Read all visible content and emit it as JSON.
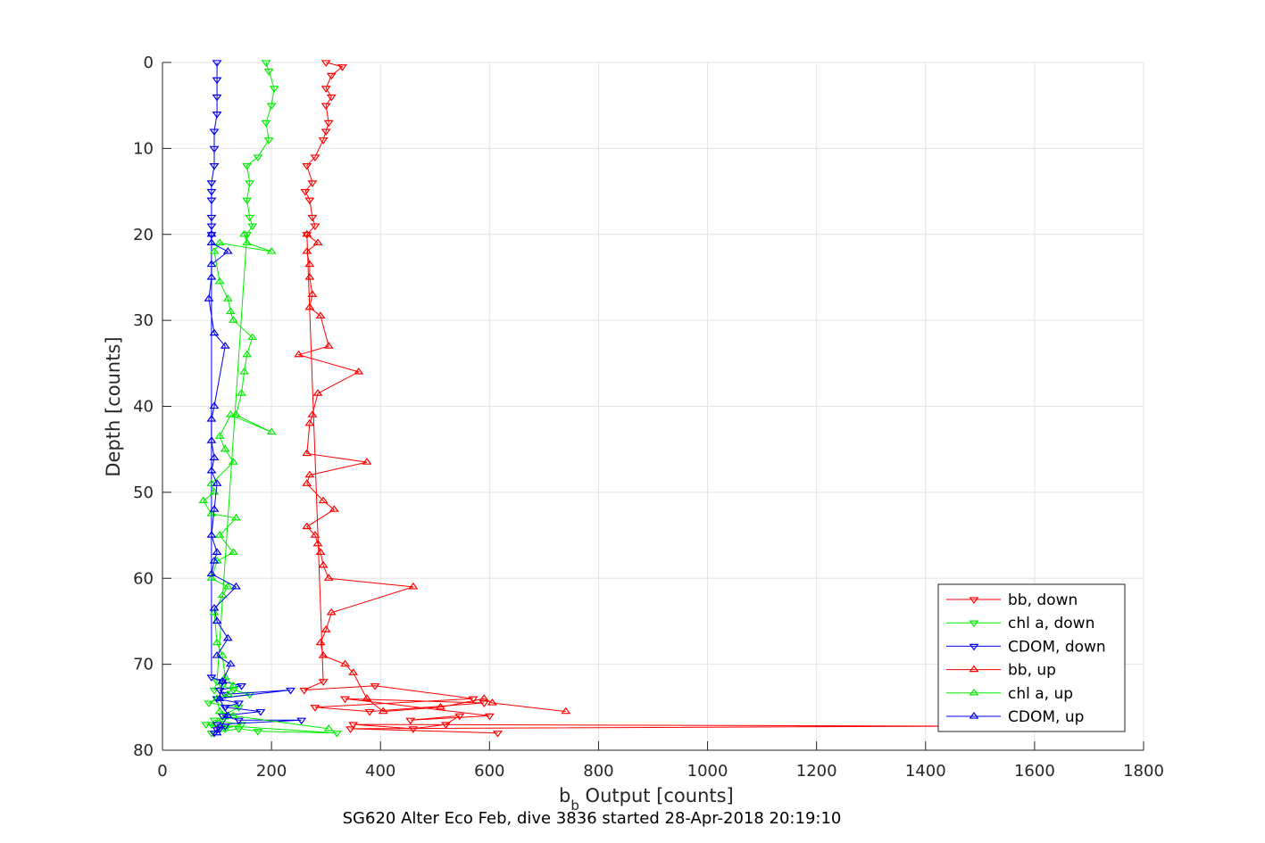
{
  "chart_data": {
    "type": "line",
    "title": "",
    "caption": "SG620 Alter Eco Feb, dive 3836 started 28-Apr-2018 20:19:10",
    "xlabel_main": "b",
    "xlabel_sub": "b",
    "xlabel_rest": " Output [counts]",
    "ylabel": "Depth [counts]",
    "xlim": [
      0,
      1800
    ],
    "ylim": [
      0,
      80
    ],
    "y_reversed": true,
    "grid": true,
    "legend_position": "bottom-right",
    "xticks": [
      "0",
      "200",
      "400",
      "600",
      "800",
      "1000",
      "1200",
      "1400",
      "1600",
      "1800"
    ],
    "yticks": [
      "0",
      "10",
      "20",
      "30",
      "40",
      "50",
      "60",
      "70",
      "80"
    ],
    "series": [
      {
        "name": "bb, down",
        "color": "#ff0000",
        "marker": "triangle-down",
        "x": [
          300,
          330,
          310,
          300,
          310,
          300,
          305,
          300,
          295,
          280,
          265,
          275,
          262,
          270,
          275,
          280,
          265,
          295,
          260,
          390,
          570,
          280,
          380,
          590,
          335,
          600,
          455,
          545,
          520,
          460,
          350,
          1470,
          345,
          615
        ],
        "y": [
          0,
          0.5,
          1.5,
          3,
          4,
          5,
          7,
          8,
          9,
          11,
          12,
          14,
          15,
          16,
          18,
          19,
          20,
          72,
          73,
          72.5,
          74,
          75,
          75.5,
          74.5,
          74,
          76,
          76.5,
          76,
          77,
          77.5,
          77,
          77.2,
          77.5,
          78
        ]
      },
      {
        "name": "chl a, down",
        "color": "#00ee00",
        "marker": "triangle-down",
        "x": [
          190,
          195,
          205,
          200,
          190,
          195,
          175,
          155,
          160,
          155,
          160,
          165,
          155,
          100,
          95,
          110,
          130,
          160,
          100,
          85,
          140,
          110,
          110,
          120,
          90,
          95,
          145,
          115,
          80,
          320,
          175,
          140,
          90
        ],
        "y": [
          0,
          1,
          3,
          5,
          7,
          9,
          11,
          12,
          14,
          16,
          18,
          19,
          20,
          72,
          73,
          72.5,
          73,
          73.5,
          74,
          74.5,
          75,
          76,
          76.5,
          76,
          77,
          76.5,
          77,
          77.5,
          77,
          78,
          77.8,
          77.5,
          78
        ]
      },
      {
        "name": "CDOM, down",
        "color": "#0000ee",
        "marker": "triangle-down",
        "x": [
          100,
          100,
          100,
          100,
          95,
          95,
          95,
          90,
          90,
          90,
          90,
          90,
          90,
          90,
          110,
          145,
          105,
          115,
          235,
          100,
          140,
          115,
          180,
          110,
          140,
          255,
          100,
          105,
          115,
          100,
          95
        ],
        "y": [
          0,
          2,
          4,
          6,
          8,
          10,
          12,
          14,
          15,
          16,
          18,
          19,
          20,
          71.5,
          72,
          72.5,
          73,
          73.5,
          73,
          74,
          74.5,
          75,
          75.5,
          76,
          76.5,
          76.5,
          77,
          77.5,
          77.2,
          77.6,
          78
        ]
      },
      {
        "name": "bb, up",
        "color": "#ff0000",
        "marker": "triangle-up",
        "x": [
          740,
          605,
          590,
          510,
          405,
          375,
          350,
          335,
          295,
          290,
          300,
          310,
          460,
          305,
          295,
          290,
          285,
          280,
          265,
          315,
          295,
          265,
          270,
          375,
          265,
          270,
          275,
          285,
          360,
          250,
          305,
          290,
          270,
          275,
          270,
          270,
          265,
          285,
          265
        ],
        "y": [
          75.5,
          74.5,
          74,
          75,
          75.5,
          74,
          71,
          70,
          69,
          67.5,
          66,
          64,
          61,
          60,
          58.5,
          57,
          56,
          55,
          54,
          52,
          51,
          49,
          48,
          46.5,
          45.5,
          42,
          41,
          38.5,
          36,
          34,
          33,
          29.5,
          28.5,
          27,
          25,
          23.5,
          22,
          21,
          20
        ]
      },
      {
        "name": "chl a, up",
        "color": "#00ee00",
        "marker": "triangle-up",
        "x": [
          305,
          130,
          105,
          100,
          120,
          130,
          115,
          110,
          100,
          95,
          110,
          120,
          90,
          100,
          130,
          105,
          135,
          90,
          75,
          95,
          90,
          130,
          115,
          105,
          125,
          200,
          135,
          145,
          150,
          155,
          165,
          130,
          125,
          120,
          105,
          95,
          105,
          200,
          155,
          150
        ],
        "y": [
          77.5,
          76,
          75.5,
          74,
          73.5,
          72.5,
          71.5,
          69,
          67.5,
          64,
          62,
          61,
          60,
          58,
          57,
          55,
          53,
          52.5,
          51,
          50,
          49,
          46.5,
          45,
          43.5,
          41,
          43,
          41,
          38.5,
          36,
          34,
          32,
          30,
          29,
          27.5,
          25.5,
          22,
          21,
          22,
          21,
          20
        ]
      },
      {
        "name": "CDOM, up",
        "color": "#0000ee",
        "marker": "triangle-up",
        "x": [
          100,
          120,
          105,
          110,
          125,
          100,
          120,
          100,
          95,
          135,
          90,
          95,
          100,
          90,
          95,
          100,
          90,
          95,
          90,
          90,
          95,
          115,
          95,
          85,
          90,
          90,
          120,
          90,
          90
        ],
        "y": [
          78,
          76,
          74,
          72,
          70,
          69,
          67,
          65,
          63.5,
          61,
          59.5,
          58,
          57,
          55,
          52,
          49,
          47.5,
          46,
          44,
          41.5,
          40,
          33,
          31.5,
          27.5,
          25,
          23.5,
          22,
          21,
          20
        ]
      }
    ]
  }
}
